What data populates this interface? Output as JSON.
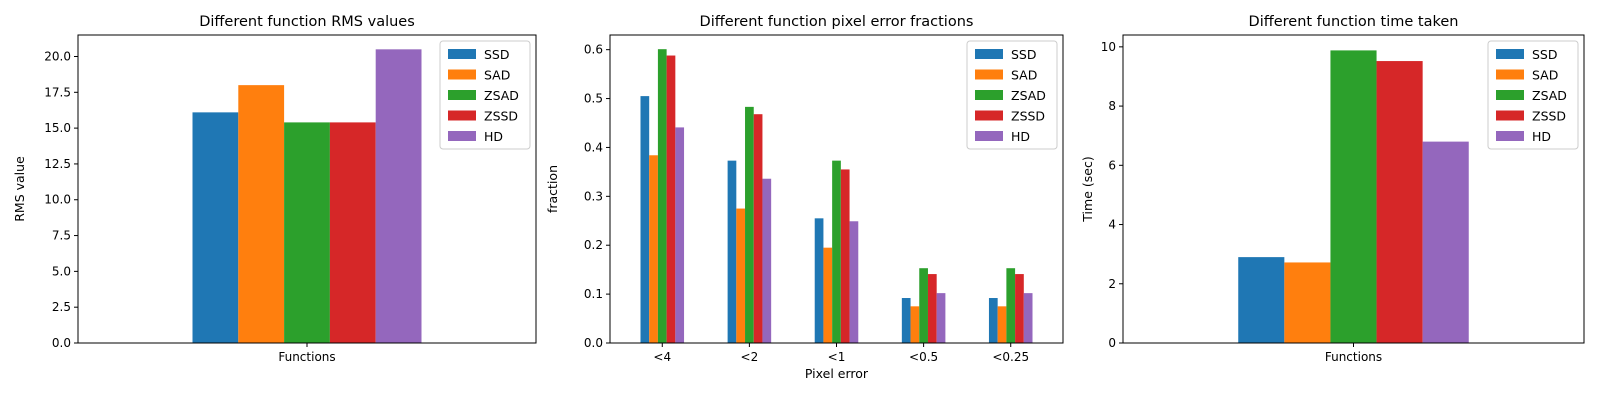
{
  "chart_data": [
    {
      "type": "bar",
      "title": "Different function RMS values",
      "xlabel": "",
      "ylabel": "RMS value",
      "categories": [
        "Functions"
      ],
      "ylim": [
        0,
        21.5
      ],
      "yticks": [
        0.0,
        2.5,
        5.0,
        7.5,
        10.0,
        12.5,
        15.0,
        17.5,
        20.0
      ],
      "ytick_labels": [
        "0.0",
        "2.5",
        "5.0",
        "7.5",
        "10.0",
        "12.5",
        "15.0",
        "17.5",
        "20.0"
      ],
      "grid": false,
      "legend_position": "top-right",
      "series": [
        {
          "name": "SSD",
          "values": [
            16.1
          ]
        },
        {
          "name": "SAD",
          "values": [
            18.0
          ]
        },
        {
          "name": "ZSAD",
          "values": [
            15.4
          ]
        },
        {
          "name": "ZSSD",
          "values": [
            15.4
          ]
        },
        {
          "name": "HD",
          "values": [
            20.5
          ]
        }
      ]
    },
    {
      "type": "bar",
      "title": "Different function pixel error fractions",
      "xlabel": "Pixel error",
      "ylabel": "fraction",
      "categories": [
        "<4",
        "<2",
        "<1",
        "<0.5",
        "<0.25"
      ],
      "ylim": [
        0,
        0.63
      ],
      "yticks": [
        0.0,
        0.1,
        0.2,
        0.3,
        0.4,
        0.5,
        0.6
      ],
      "ytick_labels": [
        "0.0",
        "0.1",
        "0.2",
        "0.3",
        "0.4",
        "0.5",
        "0.6"
      ],
      "grid": false,
      "legend_position": "top-right",
      "series": [
        {
          "name": "SSD",
          "values": [
            0.505,
            0.373,
            0.255,
            0.092,
            0.092
          ]
        },
        {
          "name": "SAD",
          "values": [
            0.384,
            0.275,
            0.195,
            0.075,
            0.075
          ]
        },
        {
          "name": "ZSAD",
          "values": [
            0.601,
            0.483,
            0.373,
            0.153,
            0.153
          ]
        },
        {
          "name": "ZSSD",
          "values": [
            0.588,
            0.468,
            0.355,
            0.141,
            0.141
          ]
        },
        {
          "name": "HD",
          "values": [
            0.441,
            0.336,
            0.249,
            0.102,
            0.102
          ]
        }
      ]
    },
    {
      "type": "bar",
      "title": "Different function time taken",
      "xlabel": "",
      "ylabel": "Time (sec)",
      "categories": [
        "Functions"
      ],
      "ylim": [
        0,
        10.4
      ],
      "yticks": [
        0,
        2,
        4,
        6,
        8,
        10
      ],
      "ytick_labels": [
        "0",
        "2",
        "4",
        "6",
        "8",
        "10"
      ],
      "grid": false,
      "legend_position": "top-right",
      "series": [
        {
          "name": "SSD",
          "values": [
            2.9
          ]
        },
        {
          "name": "SAD",
          "values": [
            2.72
          ]
        },
        {
          "name": "ZSAD",
          "values": [
            9.88
          ]
        },
        {
          "name": "ZSSD",
          "values": [
            9.52
          ]
        },
        {
          "name": "HD",
          "values": [
            6.8
          ]
        }
      ]
    }
  ],
  "colors": {
    "SSD": "#1f77b4",
    "SAD": "#ff7f0e",
    "ZSAD": "#2ca02c",
    "ZSSD": "#d62728",
    "HD": "#9467bd"
  }
}
